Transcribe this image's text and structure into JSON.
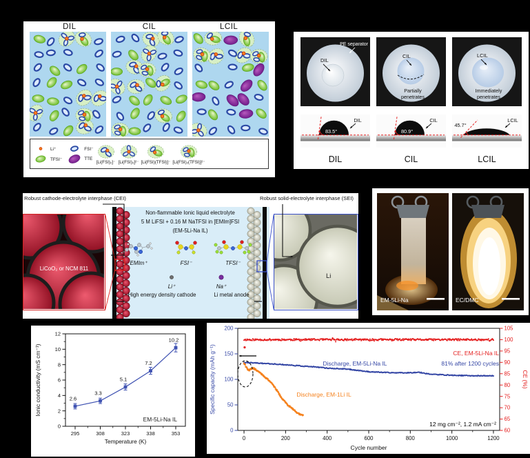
{
  "panel_a": {
    "boxes": [
      {
        "title": "DIL",
        "counts": {
          "fsi": 18,
          "tfsi": 9,
          "tte": 0,
          "cluster_fsi": 5,
          "cluster_mixed": 2
        }
      },
      {
        "title": "CIL",
        "counts": {
          "fsi": 15,
          "tfsi": 10,
          "tte": 0,
          "cluster_fsi": 5,
          "cluster_mixed": 5
        }
      },
      {
        "title": "LCIL",
        "counts": {
          "fsi": 12,
          "tfsi": 7,
          "tte": 7,
          "cluster_fsi": 3,
          "cluster_mixed": 4
        }
      }
    ],
    "legend": [
      {
        "type": "li",
        "label": "Li⁺"
      },
      {
        "type": "fsi",
        "label": "FSI⁻"
      },
      {
        "type": "tfsi",
        "label": "TFSI⁻"
      },
      {
        "type": "tte",
        "label": "TTE"
      },
      {
        "type": "cluster_fsi2",
        "label": "[Li(FSI)₂]⁻"
      },
      {
        "type": "cluster_fsi3",
        "label": "[Li(FSI)₃]²⁻"
      },
      {
        "type": "cluster_ft",
        "label": "[Li(FSI)(TFSI)]⁻"
      },
      {
        "type": "cluster_f2t",
        "label": "[Li(FSI)₂(TFSI)]²⁻"
      }
    ],
    "colors": {
      "box_bg": "#aed7ef",
      "fsi_stroke": "#2b4aa5",
      "fsi_fill": "#dceafc",
      "tfsi": "#6cbc2a",
      "tte": "#8a2f9e",
      "li": "#f5821e",
      "cluster_fill": "#d9f0c2"
    }
  },
  "panel_b": {
    "photos": [
      {
        "separator_label": "PE separator",
        "droplet_label": "DIL",
        "note_lines": []
      },
      {
        "droplet_label": "CIL",
        "note_lines": [
          "Partially",
          "penetrates"
        ]
      },
      {
        "droplet_label": "LCIL",
        "note_lines": [
          "Immediately",
          "penetrates"
        ]
      }
    ],
    "contact_angles": [
      {
        "angle": "83.5°",
        "label": "DIL",
        "profile": "high"
      },
      {
        "angle": "80.9°",
        "label": "CIL",
        "profile": "high"
      },
      {
        "angle": "45.7°",
        "label": "LCIL",
        "profile": "low"
      }
    ],
    "bottom_labels": [
      "DIL",
      "CIL",
      "LCIL"
    ]
  },
  "panel_c": {
    "left_title": "Robust cathode-electrolyte interphase (CEI)",
    "left_label": "LiCoO₂ or NCM 811",
    "electrolyte_title": "Non-flammable Ionic liquid electrolyte",
    "electrolyte_formula": "5 M LiFSI + 0.16 M NaTFSI in [EMIm]FSI",
    "electrolyte_name": "(EM-5Li-Na IL)",
    "molecule_labels": [
      "EMIm⁺",
      "FSI⁻",
      "TFSI⁻"
    ],
    "ion_labels": [
      "Li⁺",
      "Na⁺"
    ],
    "cathode_label": "High energy density cathode",
    "anode_label": "Li metal anode",
    "right_title": "Robust solid-electrolyte interphase (SEI)",
    "right_label": "Li"
  },
  "panel_d": {
    "photos": [
      {
        "label": "EM-5Li-Na"
      },
      {
        "label": "EC/DMC"
      }
    ]
  },
  "chart_data": [
    {
      "id": "ionic-conductivity-vs-temperature",
      "type": "line",
      "x": [
        295,
        308,
        323,
        338,
        353
      ],
      "y": [
        2.6,
        3.3,
        5.1,
        7.2,
        10.2
      ],
      "y_err": [
        0.35,
        0.35,
        0.4,
        0.45,
        0.55
      ],
      "point_labels": [
        "2.6",
        "3.3",
        "5.1",
        "7.2",
        "10.2"
      ],
      "xlabel": "Temperature (K)",
      "ylabel": "Ionic conductivity (mS cm⁻¹)",
      "annotation": "EM-5Li-Na IL",
      "ylim": [
        0,
        12
      ],
      "yticks": [
        0,
        2,
        4,
        6,
        8,
        10,
        12
      ],
      "xticks": [
        "295",
        "308",
        "323",
        "338",
        "353"
      ],
      "series_color": "#4053b2",
      "grid": false,
      "legend_position": "none"
    },
    {
      "id": "cycling-performance",
      "type": "scatter",
      "xlabel": "Cycle number",
      "ylabel_left": "Specific capacity (mAh g⁻¹)",
      "ylabel_right": "CE (%)",
      "xlim": [
        -30,
        1230
      ],
      "xticks": [
        0,
        200,
        400,
        600,
        800,
        1000,
        1200
      ],
      "ylim_left": [
        0,
        200
      ],
      "yticks_left": [
        0,
        50,
        100,
        150,
        200
      ],
      "ylim_right": [
        60,
        105
      ],
      "yticks_right": [
        60,
        65,
        70,
        75,
        80,
        85,
        90,
        95,
        100,
        105
      ],
      "axis_color_left": "#3547a5",
      "axis_color_right": "#e41f1f",
      "annotations": [
        {
          "text": "CE, EM-5Li-Na IL",
          "color": "#e41f1f"
        },
        {
          "text": "Discharge, EM-5Li-Na IL",
          "color": "#3547a5"
        },
        {
          "text": "81% after 1200 cycles",
          "color": "#3547a5"
        },
        {
          "text": "Discharge, EM-1Li IL",
          "color": "#f5821e"
        },
        {
          "text": "12 mg cm⁻², 1.2 mA cm⁻²",
          "color": "#000000"
        }
      ],
      "series": [
        {
          "name": "CE, EM-5Li-Na IL",
          "axis": "right",
          "color": "#e41f1f",
          "style": "dots",
          "baseline": 100,
          "x_range": [
            0,
            1200
          ],
          "outliers": [
            [
              3,
              96.6
            ]
          ]
        },
        {
          "name": "Discharge, EM-5Li-Na IL",
          "axis": "left",
          "color": "#3547a5",
          "style": "dots",
          "anchors": [
            [
              0,
              133
            ],
            [
              60,
              132
            ],
            [
              150,
              130
            ],
            [
              250,
              127
            ],
            [
              350,
              124
            ],
            [
              400,
              122
            ],
            [
              500,
              120
            ],
            [
              600,
              115
            ],
            [
              700,
              113
            ],
            [
              800,
              113
            ],
            [
              840,
              114
            ],
            [
              900,
              110
            ],
            [
              1000,
              108
            ],
            [
              1100,
              107
            ],
            [
              1200,
              107
            ]
          ]
        },
        {
          "name": "Discharge, EM-1Li IL",
          "axis": "left",
          "color": "#f5821e",
          "style": "dots",
          "anchors": [
            [
              0,
              132
            ],
            [
              8,
              126
            ],
            [
              15,
              121
            ],
            [
              25,
              118
            ],
            [
              35,
              121
            ],
            [
              45,
              122
            ],
            [
              60,
              118
            ],
            [
              80,
              112
            ],
            [
              100,
              105
            ],
            [
              120,
              98
            ],
            [
              135,
              92
            ],
            [
              150,
              83
            ],
            [
              165,
              74
            ],
            [
              180,
              64
            ],
            [
              195,
              57
            ],
            [
              210,
              50
            ],
            [
              225,
              45
            ],
            [
              240,
              40
            ],
            [
              255,
              35
            ],
            [
              270,
              31
            ],
            [
              285,
              29
            ]
          ]
        }
      ]
    }
  ]
}
